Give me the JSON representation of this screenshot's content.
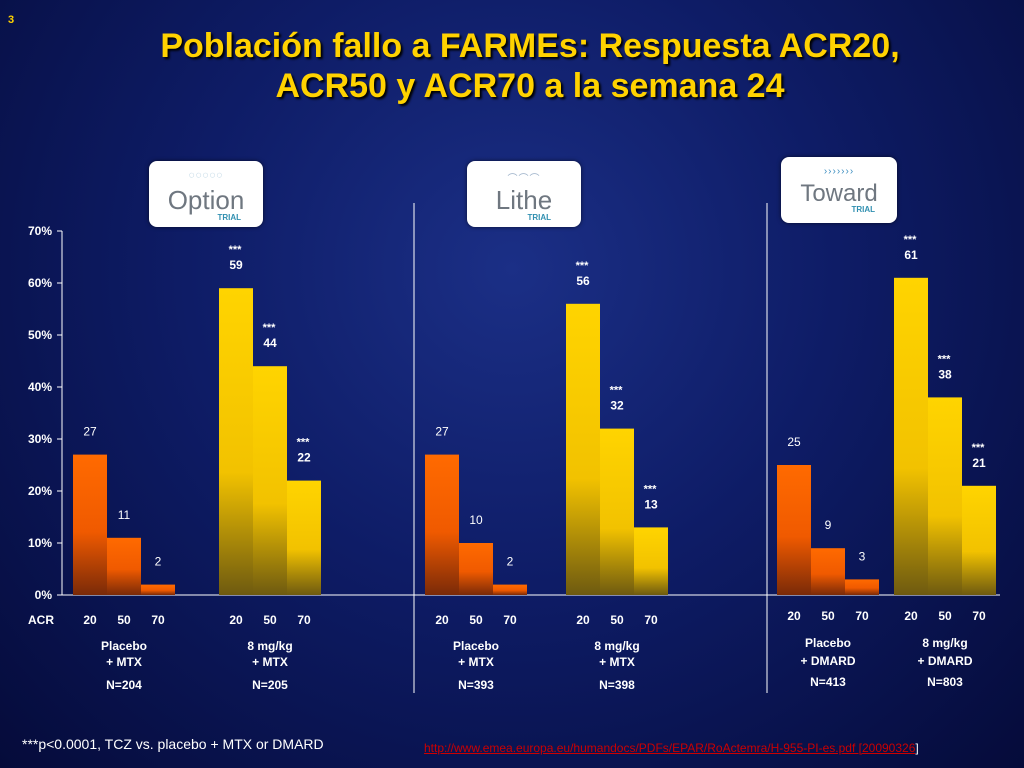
{
  "slide_number": "3",
  "title": {
    "line1": "Población fallo a FARMEs: Respuesta ACR20,",
    "line2": "ACR50 y ACR70 a la semana 24"
  },
  "logos": [
    {
      "name": "Option",
      "sub": "TRIAL",
      "icon": "dots-icon"
    },
    {
      "name": "Lithe",
      "sub": "TRIAL",
      "icon": "arc-icon"
    },
    {
      "name": "Toward",
      "sub": "TRIAL",
      "icon": "chevrons-icon"
    }
  ],
  "footnote": "***p<0.0001, TCZ vs. placebo + MTX or DMARD",
  "source": {
    "url_text": "http://www.emea.europa.eu/humandocs/PDFs/EPAR/RoActemra/H-955-PI-es.pdf [20090326",
    "suffix": "]"
  },
  "chart_data": {
    "type": "bar",
    "ylim": [
      0,
      70
    ],
    "y_tick_labels": [
      "0%",
      "10%",
      "20%",
      "30%",
      "40%",
      "50%",
      "60%",
      "70%"
    ],
    "x_axis_prefix": "ACR",
    "categories": [
      "20",
      "50",
      "70"
    ],
    "significance_marker": "***",
    "colors": {
      "placebo": "#ff6600",
      "tcz": "#ffcc00"
    },
    "trials": [
      {
        "trial": "Option",
        "groups": [
          {
            "label_line1": "Placebo",
            "label_line2": "+ MTX",
            "n": "N=204",
            "kind": "placebo",
            "values": [
              27,
              11,
              2
            ],
            "significant": [
              false,
              false,
              false
            ]
          },
          {
            "label_line1": "8 mg/kg",
            "label_line2": "+ MTX",
            "n": "N=205",
            "kind": "tcz",
            "values": [
              59,
              44,
              22
            ],
            "significant": [
              true,
              true,
              true
            ]
          }
        ]
      },
      {
        "trial": "Lithe",
        "groups": [
          {
            "label_line1": "Placebo",
            "label_line2": "+ MTX",
            "n": "N=393",
            "kind": "placebo",
            "values": [
              27,
              10,
              2
            ],
            "significant": [
              false,
              false,
              false
            ]
          },
          {
            "label_line1": "8 mg/kg",
            "label_line2": "+ MTX",
            "n": "N=398",
            "kind": "tcz",
            "values": [
              56,
              32,
              13
            ],
            "significant": [
              true,
              true,
              true
            ]
          }
        ]
      },
      {
        "trial": "Toward",
        "groups": [
          {
            "label_line1": "Placebo",
            "label_line2": "+ DMARD",
            "n": "N=413",
            "kind": "placebo",
            "values": [
              25,
              9,
              3
            ],
            "significant": [
              false,
              false,
              false
            ]
          },
          {
            "label_line1": "8 mg/kg",
            "label_line2": "+ DMARD",
            "n": "N=803",
            "kind": "tcz",
            "values": [
              61,
              38,
              21
            ],
            "significant": [
              true,
              true,
              true
            ]
          }
        ]
      }
    ]
  }
}
